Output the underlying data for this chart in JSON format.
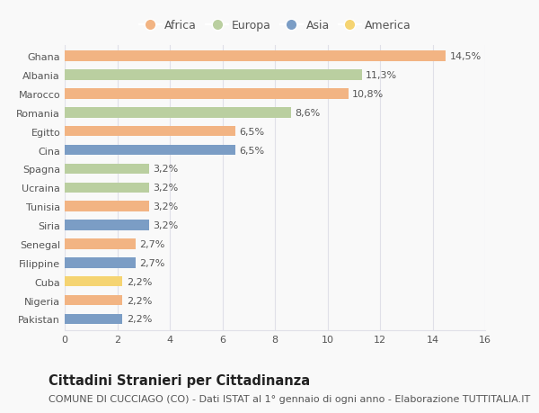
{
  "categories": [
    "Ghana",
    "Albania",
    "Marocco",
    "Romania",
    "Egitto",
    "Cina",
    "Spagna",
    "Ucraina",
    "Tunisia",
    "Siria",
    "Senegal",
    "Filippine",
    "Cuba",
    "Nigeria",
    "Pakistan"
  ],
  "values": [
    14.5,
    11.3,
    10.8,
    8.6,
    6.5,
    6.5,
    3.2,
    3.2,
    3.2,
    3.2,
    2.7,
    2.7,
    2.2,
    2.2,
    2.2
  ],
  "labels": [
    "14,5%",
    "11,3%",
    "10,8%",
    "8,6%",
    "6,5%",
    "6,5%",
    "3,2%",
    "3,2%",
    "3,2%",
    "3,2%",
    "2,7%",
    "2,7%",
    "2,2%",
    "2,2%",
    "2,2%"
  ],
  "continents": [
    "Africa",
    "Europa",
    "Africa",
    "Europa",
    "Africa",
    "Asia",
    "Europa",
    "Europa",
    "Africa",
    "Asia",
    "Africa",
    "Asia",
    "America",
    "Africa",
    "Asia"
  ],
  "colors": {
    "Africa": "#F2B483",
    "Europa": "#BACFA0",
    "Asia": "#7B9DC5",
    "America": "#F5D472"
  },
  "legend_order": [
    "Africa",
    "Europa",
    "Asia",
    "America"
  ],
  "xlim": [
    0,
    16
  ],
  "xticks": [
    0,
    2,
    4,
    6,
    8,
    10,
    12,
    14,
    16
  ],
  "title": "Cittadini Stranieri per Cittadinanza",
  "subtitle": "COMUNE DI CUCCIAGO (CO) - Dati ISTAT al 1° gennaio di ogni anno - Elaborazione TUTTITALIA.IT",
  "background_color": "#f9f9f9",
  "grid_color": "#e0e0e8",
  "bar_height": 0.55,
  "title_fontsize": 10.5,
  "subtitle_fontsize": 8,
  "label_fontsize": 8,
  "tick_fontsize": 8,
  "legend_fontsize": 9
}
